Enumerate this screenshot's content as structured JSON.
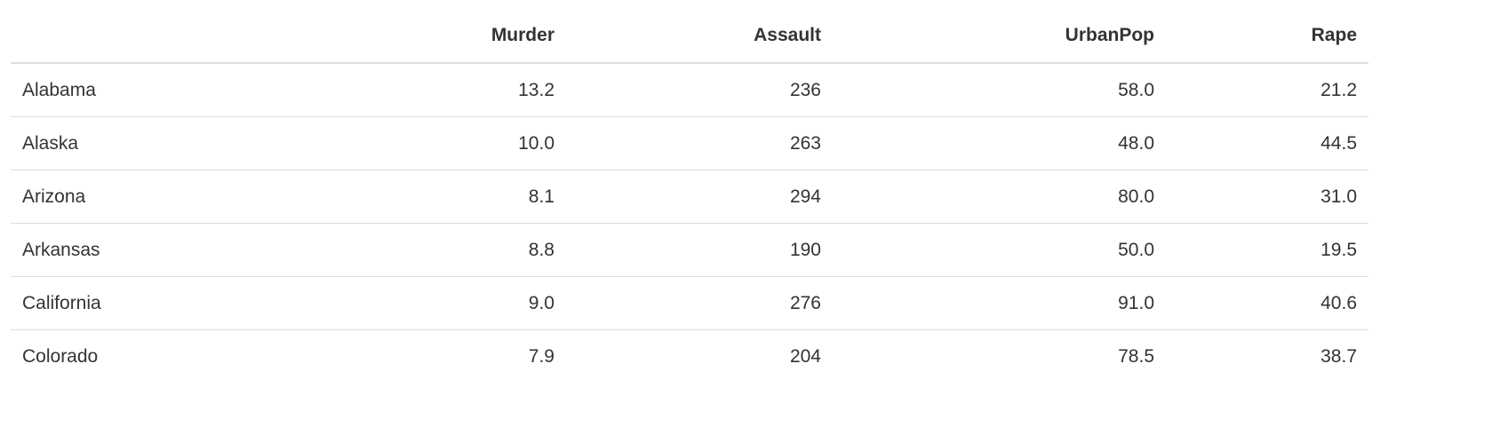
{
  "table": {
    "columns": [
      "",
      "Murder",
      "Assault",
      "UrbanPop",
      "Rape"
    ],
    "rows": [
      [
        "Alabama",
        "13.2",
        "236",
        "58.0",
        "21.2"
      ],
      [
        "Alaska",
        "10.0",
        "263",
        "48.0",
        "44.5"
      ],
      [
        "Arizona",
        "8.1",
        "294",
        "80.0",
        "31.0"
      ],
      [
        "Arkansas",
        "8.8",
        "190",
        "50.0",
        "19.5"
      ],
      [
        "California",
        "9.0",
        "276",
        "91.0",
        "40.6"
      ],
      [
        "Colorado",
        "7.9",
        "204",
        "78.5",
        "38.7"
      ]
    ]
  }
}
